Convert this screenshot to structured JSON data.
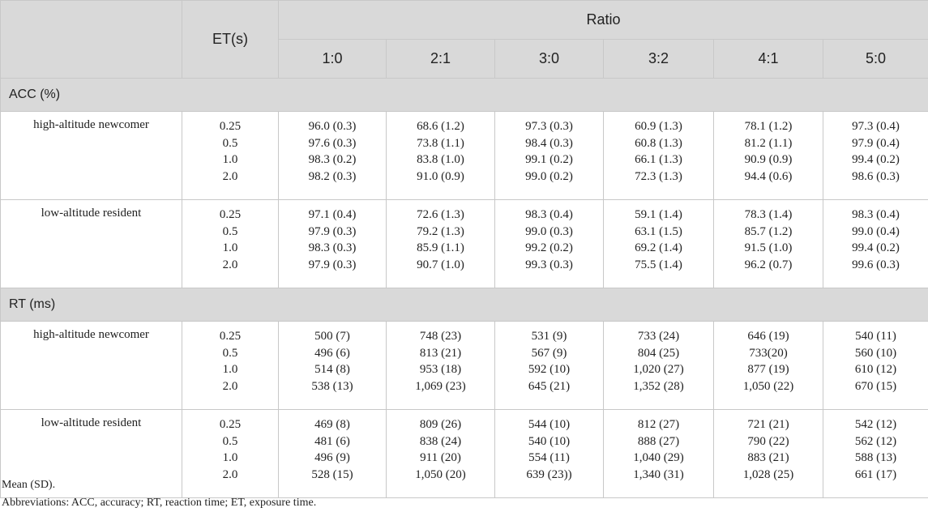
{
  "header": {
    "et_label": "ET(s)",
    "ratio_label": "Ratio",
    "ratios": [
      "1:0",
      "2:1",
      "3:0",
      "3:2",
      "4:1",
      "5:0"
    ]
  },
  "sections": [
    {
      "label": "ACC (%)",
      "groups": [
        {
          "name": "high-altitude newcomer",
          "et": [
            "0.25",
            "0.5",
            "1.0",
            "2.0"
          ],
          "columns": [
            [
              "96.0 (0.3)",
              "97.6 (0.3)",
              "98.3 (0.2)",
              "98.2 (0.3)"
            ],
            [
              "68.6 (1.2)",
              "73.8 (1.1)",
              "83.8 (1.0)",
              "91.0 (0.9)"
            ],
            [
              "97.3 (0.3)",
              "98.4 (0.3)",
              "99.1 (0.2)",
              "99.0 (0.2)"
            ],
            [
              "60.9 (1.3)",
              "60.8 (1.3)",
              "66.1 (1.3)",
              "72.3 (1.3)"
            ],
            [
              "78.1 (1.2)",
              "81.2 (1.1)",
              "90.9 (0.9)",
              "94.4 (0.6)"
            ],
            [
              "97.3 (0.4)",
              "97.9 (0.4)",
              "99.4 (0.2)",
              "98.6 (0.3)"
            ]
          ]
        },
        {
          "name": "low-altitude resident",
          "et": [
            "0.25",
            "0.5",
            "1.0",
            "2.0"
          ],
          "columns": [
            [
              "97.1 (0.4)",
              "97.9 (0.3)",
              "98.3 (0.3)",
              "97.9 (0.3)"
            ],
            [
              "72.6 (1.3)",
              "79.2 (1.3)",
              "85.9 (1.1)",
              "90.7 (1.0)"
            ],
            [
              "98.3 (0.4)",
              "99.0 (0.3)",
              "99.2 (0.2)",
              "99.3 (0.3)"
            ],
            [
              "59.1 (1.4)",
              "63.1 (1.5)",
              "69.2 (1.4)",
              "75.5 (1.4)"
            ],
            [
              "78.3 (1.4)",
              "85.7 (1.2)",
              "91.5 (1.0)",
              "96.2 (0.7)"
            ],
            [
              "98.3 (0.4)",
              "99.0 (0.4)",
              "99.4 (0.2)",
              "99.6 (0.3)"
            ]
          ]
        }
      ]
    },
    {
      "label": "RT (ms)",
      "groups": [
        {
          "name": "high-altitude newcomer",
          "et": [
            "0.25",
            "0.5",
            "1.0",
            "2.0"
          ],
          "columns": [
            [
              "500 (7)",
              "496 (6)",
              "514 (8)",
              "538 (13)"
            ],
            [
              "748 (23)",
              "813 (21)",
              "953 (18)",
              "1,069 (23)"
            ],
            [
              "531 (9)",
              "567 (9)",
              "592 (10)",
              "645 (21)"
            ],
            [
              "733 (24)",
              "804 (25)",
              "1,020 (27)",
              "1,352 (28)"
            ],
            [
              "646 (19)",
              "733(20)",
              "877 (19)",
              "1,050 (22)"
            ],
            [
              "540 (11)",
              "560 (10)",
              "610 (12)",
              "670 (15)"
            ]
          ]
        },
        {
          "name": "low-altitude resident",
          "et": [
            "0.25",
            "0.5",
            "1.0",
            "2.0"
          ],
          "columns": [
            [
              "469 (8)",
              "481 (6)",
              "496 (9)",
              "528 (15)"
            ],
            [
              "809 (26)",
              "838 (24)",
              "911 (20)",
              "1,050 (20)"
            ],
            [
              "544 (10)",
              "540 (10)",
              "554 (11)",
              "639 (23))"
            ],
            [
              "812 (27)",
              "888 (27)",
              "1,040 (29)",
              "1,340 (31)"
            ],
            [
              "721 (21)",
              "790 (22)",
              "883 (21)",
              "1,028 (25)"
            ],
            [
              "542 (12)",
              "562 (12)",
              "588 (13)",
              "661 (17)"
            ]
          ]
        }
      ]
    }
  ],
  "notes": {
    "mean_sd": "Mean (SD).",
    "abbreviations": "Abbreviations: ACC, accuracy; RT, reaction time; ET, exposure time."
  }
}
